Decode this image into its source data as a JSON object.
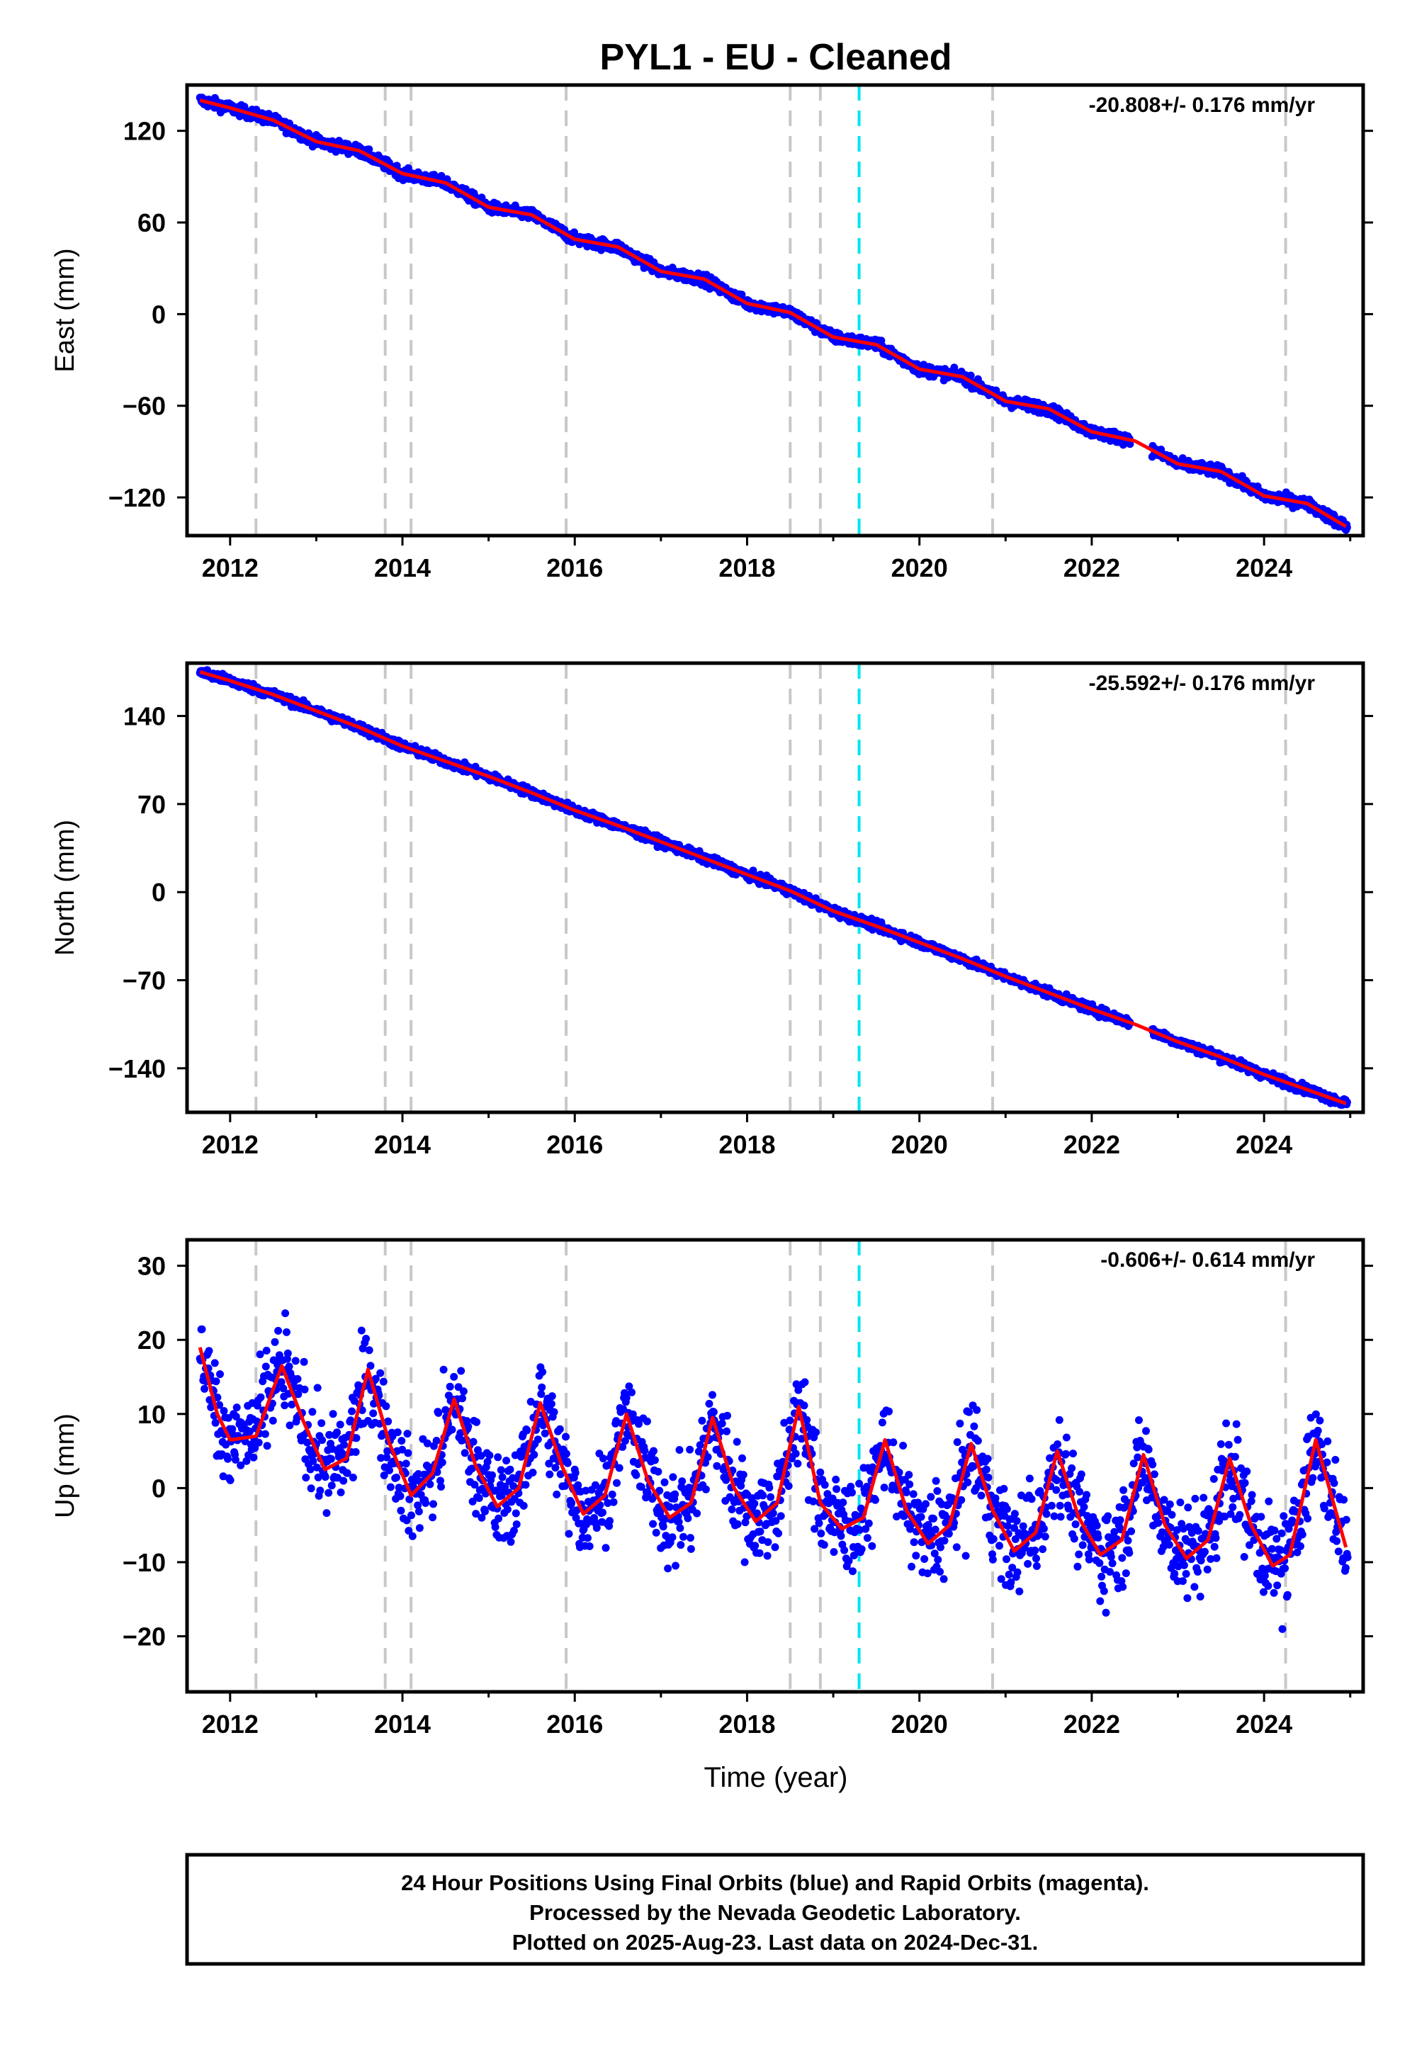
{
  "figure": {
    "title": "PYL1  - EU - Cleaned",
    "x_axis_label": "Time (year)",
    "footer_lines": [
      "24 Hour Positions Using Final Orbits (blue) and Rapid Orbits (magenta).",
      "Processed by the Nevada Geodetic Laboratory.",
      "Plotted on 2025-Aug-23. Last data on 2024-Dec-31."
    ]
  },
  "colors": {
    "data": "#0000ff",
    "model": "#ff0000",
    "equipment_change": "#c8c8c8",
    "earthquake": "#00e5ee",
    "frame": "#000000"
  },
  "chart_data": [
    {
      "type": "scatter",
      "ylabel": "East (mm)",
      "rate_label": "-20.808+/- 0.176 mm/yr",
      "xlim": [
        2011.5,
        2025.15
      ],
      "ylim": [
        -145,
        150
      ],
      "xticks": [
        2012,
        2014,
        2016,
        2018,
        2020,
        2022,
        2024
      ],
      "yticks": [
        -120,
        -60,
        0,
        60,
        120
      ],
      "ytick_labels": [
        "−120",
        "−60",
        "0",
        "60",
        "120"
      ],
      "grid": false,
      "equipment_changes": [
        2012.3,
        2013.8,
        2014.1,
        2015.9,
        2018.5,
        2018.85
      ],
      "earthquakes": [
        2019.3
      ],
      "equipment_changes_late": [
        2020.85,
        2024.25
      ],
      "model_points": [
        {
          "x": 2011.65,
          "y": 140
        },
        {
          "x": 2012.0,
          "y": 135
        },
        {
          "x": 2012.5,
          "y": 127
        },
        {
          "x": 2013.0,
          "y": 113
        },
        {
          "x": 2013.5,
          "y": 107
        },
        {
          "x": 2014.0,
          "y": 92
        },
        {
          "x": 2014.5,
          "y": 86
        },
        {
          "x": 2015.0,
          "y": 70
        },
        {
          "x": 2015.5,
          "y": 65
        },
        {
          "x": 2016.0,
          "y": 49
        },
        {
          "x": 2016.5,
          "y": 44
        },
        {
          "x": 2017.0,
          "y": 28
        },
        {
          "x": 2017.5,
          "y": 23
        },
        {
          "x": 2018.0,
          "y": 7
        },
        {
          "x": 2018.5,
          "y": 1
        },
        {
          "x": 2019.0,
          "y": -15
        },
        {
          "x": 2019.5,
          "y": -20
        },
        {
          "x": 2020.0,
          "y": -36
        },
        {
          "x": 2020.5,
          "y": -41
        },
        {
          "x": 2021.0,
          "y": -57
        },
        {
          "x": 2021.5,
          "y": -62
        },
        {
          "x": 2022.0,
          "y": -77
        },
        {
          "x": 2022.5,
          "y": -83
        },
        {
          "x": 2023.0,
          "y": -98
        },
        {
          "x": 2023.5,
          "y": -103
        },
        {
          "x": 2024.0,
          "y": -119
        },
        {
          "x": 2024.5,
          "y": -124
        },
        {
          "x": 2024.95,
          "y": -139
        }
      ],
      "noise_mm": 2.5
    },
    {
      "type": "scatter",
      "ylabel": "North (mm)",
      "rate_label": "-25.592+/- 0.176 mm/yr",
      "xlim": [
        2011.5,
        2025.15
      ],
      "ylim": [
        -175,
        182
      ],
      "xticks": [
        2012,
        2014,
        2016,
        2018,
        2020,
        2022,
        2024
      ],
      "yticks": [
        -140,
        -70,
        0,
        70,
        140
      ],
      "ytick_labels": [
        "−140",
        "−70",
        "0",
        "70",
        "140"
      ],
      "grid": false,
      "equipment_changes": [
        2012.3,
        2013.8,
        2014.1,
        2015.9,
        2018.5,
        2018.85
      ],
      "earthquakes": [
        2019.3
      ],
      "equipment_changes_late": [
        2020.85,
        2024.25
      ],
      "model_points": [
        {
          "x": 2011.65,
          "y": 175
        },
        {
          "x": 2012.0,
          "y": 168
        },
        {
          "x": 2012.5,
          "y": 157
        },
        {
          "x": 2013.0,
          "y": 144
        },
        {
          "x": 2013.5,
          "y": 131
        },
        {
          "x": 2014.0,
          "y": 116
        },
        {
          "x": 2014.5,
          "y": 104
        },
        {
          "x": 2015.0,
          "y": 92
        },
        {
          "x": 2015.5,
          "y": 79
        },
        {
          "x": 2016.0,
          "y": 65
        },
        {
          "x": 2016.5,
          "y": 53
        },
        {
          "x": 2017.0,
          "y": 40
        },
        {
          "x": 2017.5,
          "y": 27
        },
        {
          "x": 2018.0,
          "y": 14
        },
        {
          "x": 2018.5,
          "y": 1
        },
        {
          "x": 2019.0,
          "y": -15
        },
        {
          "x": 2019.5,
          "y": -27
        },
        {
          "x": 2020.0,
          "y": -40
        },
        {
          "x": 2020.5,
          "y": -53
        },
        {
          "x": 2021.0,
          "y": -67
        },
        {
          "x": 2021.5,
          "y": -80
        },
        {
          "x": 2022.0,
          "y": -93
        },
        {
          "x": 2022.5,
          "y": -105
        },
        {
          "x": 2023.0,
          "y": -119
        },
        {
          "x": 2023.5,
          "y": -131
        },
        {
          "x": 2024.0,
          "y": -145
        },
        {
          "x": 2024.5,
          "y": -157
        },
        {
          "x": 2024.95,
          "y": -168
        }
      ],
      "noise_mm": 2.5
    },
    {
      "type": "scatter",
      "ylabel": "Up (mm)",
      "rate_label": "-0.606+/- 0.614 mm/yr",
      "xlim": [
        2011.5,
        2025.15
      ],
      "ylim": [
        -27.5,
        33.5
      ],
      "xticks": [
        2012,
        2014,
        2016,
        2018,
        2020,
        2022,
        2024
      ],
      "yticks": [
        -20,
        -10,
        0,
        10,
        20,
        30
      ],
      "ytick_labels": [
        "−20",
        "−10",
        "0",
        "10",
        "20",
        "30"
      ],
      "grid": false,
      "equipment_changes": [
        2012.3,
        2013.8,
        2014.1,
        2015.9,
        2018.5,
        2018.85
      ],
      "earthquakes": [
        2019.3
      ],
      "equipment_changes_late": [
        2020.85,
        2024.25
      ],
      "model_points": [
        {
          "x": 2011.65,
          "y": 19
        },
        {
          "x": 2011.85,
          "y": 10
        },
        {
          "x": 2012.0,
          "y": 6.5
        },
        {
          "x": 2012.3,
          "y": 7
        },
        {
          "x": 2012.6,
          "y": 16.5
        },
        {
          "x": 2012.85,
          "y": 9
        },
        {
          "x": 2013.1,
          "y": 2.5
        },
        {
          "x": 2013.35,
          "y": 4
        },
        {
          "x": 2013.6,
          "y": 16
        },
        {
          "x": 2013.85,
          "y": 6
        },
        {
          "x": 2014.1,
          "y": -1
        },
        {
          "x": 2014.35,
          "y": 2
        },
        {
          "x": 2014.6,
          "y": 12
        },
        {
          "x": 2014.85,
          "y": 3
        },
        {
          "x": 2015.1,
          "y": -2.5
        },
        {
          "x": 2015.35,
          "y": 0
        },
        {
          "x": 2015.6,
          "y": 11.5
        },
        {
          "x": 2015.85,
          "y": 3
        },
        {
          "x": 2016.1,
          "y": -3.5
        },
        {
          "x": 2016.35,
          "y": -1
        },
        {
          "x": 2016.6,
          "y": 10
        },
        {
          "x": 2016.85,
          "y": 1
        },
        {
          "x": 2017.1,
          "y": -4
        },
        {
          "x": 2017.35,
          "y": -2
        },
        {
          "x": 2017.6,
          "y": 9.5
        },
        {
          "x": 2017.85,
          "y": 0
        },
        {
          "x": 2018.1,
          "y": -4.5
        },
        {
          "x": 2018.35,
          "y": -2
        },
        {
          "x": 2018.6,
          "y": 11
        },
        {
          "x": 2018.85,
          "y": -2
        },
        {
          "x": 2019.1,
          "y": -5.5
        },
        {
          "x": 2019.35,
          "y": -4
        },
        {
          "x": 2019.6,
          "y": 6.5
        },
        {
          "x": 2019.85,
          "y": -3
        },
        {
          "x": 2020.1,
          "y": -7.5
        },
        {
          "x": 2020.35,
          "y": -5
        },
        {
          "x": 2020.6,
          "y": 6
        },
        {
          "x": 2020.85,
          "y": -3
        },
        {
          "x": 2021.1,
          "y": -8.5
        },
        {
          "x": 2021.35,
          "y": -6
        },
        {
          "x": 2021.6,
          "y": 5
        },
        {
          "x": 2021.85,
          "y": -4
        },
        {
          "x": 2022.1,
          "y": -9
        },
        {
          "x": 2022.35,
          "y": -7
        },
        {
          "x": 2022.6,
          "y": 4.5
        },
        {
          "x": 2022.85,
          "y": -5
        },
        {
          "x": 2023.1,
          "y": -9.5
        },
        {
          "x": 2023.35,
          "y": -7
        },
        {
          "x": 2023.6,
          "y": 4
        },
        {
          "x": 2023.85,
          "y": -5
        },
        {
          "x": 2024.1,
          "y": -10.5
        },
        {
          "x": 2024.3,
          "y": -9
        },
        {
          "x": 2024.6,
          "y": 6.5
        },
        {
          "x": 2024.95,
          "y": -8
        }
      ],
      "noise_mm": 4.5
    }
  ]
}
